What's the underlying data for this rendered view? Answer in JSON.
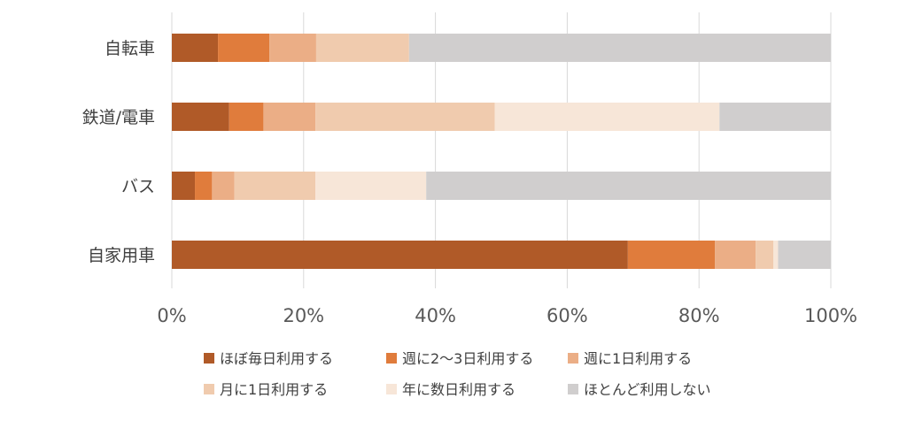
{
  "chart_data": {
    "type": "bar",
    "orientation": "horizontal",
    "stacked": "percent",
    "categories": [
      "自転車",
      "鉄道/電車",
      "バス",
      "自家用車"
    ],
    "series": [
      {
        "name": "ほぼ毎日利用する",
        "color": "#B05A28",
        "values": [
          7,
          8.7,
          3.5,
          69.2
        ]
      },
      {
        "name": "週に2〜3日利用する",
        "color": "#E07C3C",
        "values": [
          7.8,
          5.2,
          2.6,
          13.2
        ]
      },
      {
        "name": "週に1日利用する",
        "color": "#EBAE86",
        "values": [
          7.1,
          7.9,
          3.4,
          6.2
        ]
      },
      {
        "name": "月に1日利用する",
        "color": "#F0CBAE",
        "values": [
          14.1,
          27.2,
          12.3,
          2.7
        ]
      },
      {
        "name": "年に数日利用する",
        "color": "#F7E6D8",
        "values": [
          0,
          34.1,
          16.8,
          0.7
        ]
      },
      {
        "name": "ほとんど利用しない",
        "color": "#D0CECE",
        "values": [
          64,
          16.9,
          61.4,
          8
        ]
      }
    ],
    "x_ticks": [
      "0%",
      "20%",
      "40%",
      "60%",
      "80%",
      "100%"
    ],
    "xlim": [
      0,
      100
    ],
    "grid": "vertical",
    "legend": "bottom"
  }
}
